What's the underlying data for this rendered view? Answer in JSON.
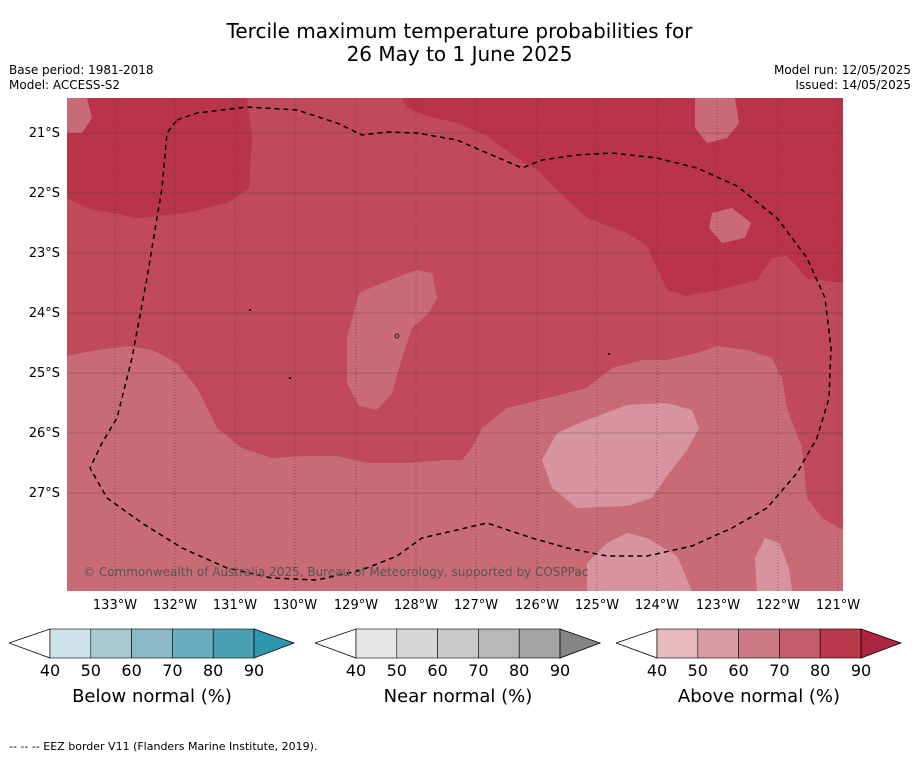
{
  "title_line1": "Tercile maximum temperature probabilities for",
  "title_line2": "26 May to 1 June 2025",
  "base_period": "Base period: 1981-2018",
  "model": "Model: ACCESS-S2",
  "model_run": "Model run: 12/05/2025",
  "issued": "Issued: 14/05/2025",
  "copyright": "© Commonwealth of Australia 2025, Bureau of Meteorology, supported by COSPPac",
  "footer": "--  --  -- EEZ border V11 (Flanders Marine Institute, 2019).",
  "lat_labels": [
    "21°S",
    "22°S",
    "23°S",
    "24°S",
    "25°S",
    "26°S",
    "27°S"
  ],
  "lon_labels": [
    "133°W",
    "132°W",
    "131°W",
    "130°W",
    "129°W",
    "128°W",
    "127°W",
    "126°W",
    "125°W",
    "124°W",
    "123°W",
    "122°W",
    "121°W"
  ],
  "colorbars": [
    {
      "label": "Below normal (%)",
      "ticks": [
        "40",
        "50",
        "60",
        "70",
        "80",
        "90"
      ],
      "colors": [
        "#cde3e9",
        "#a8c9cf",
        "#8bbac6",
        "#6aadbd",
        "#48a0b2",
        "#2f97ad"
      ]
    },
    {
      "label": "Near normal (%)",
      "ticks": [
        "40",
        "50",
        "60",
        "70",
        "80",
        "90"
      ],
      "colors": [
        "#e6e6e6",
        "#d6d6d6",
        "#c9c9c9",
        "#b8b8b8",
        "#a3a3a3",
        "#858585"
      ]
    },
    {
      "label": "Above normal (%)",
      "ticks": [
        "40",
        "50",
        "60",
        "70",
        "80",
        "90"
      ],
      "colors": [
        "#e8b8bf",
        "#d99aa3",
        "#cd7a84",
        "#c45c69",
        "#ba3a4c",
        "#ad2440"
      ]
    }
  ],
  "map_colors": {
    "p50": "#d7949e",
    "p60": "#c96b76",
    "p70": "#c04a59",
    "p80": "#b93448"
  }
}
